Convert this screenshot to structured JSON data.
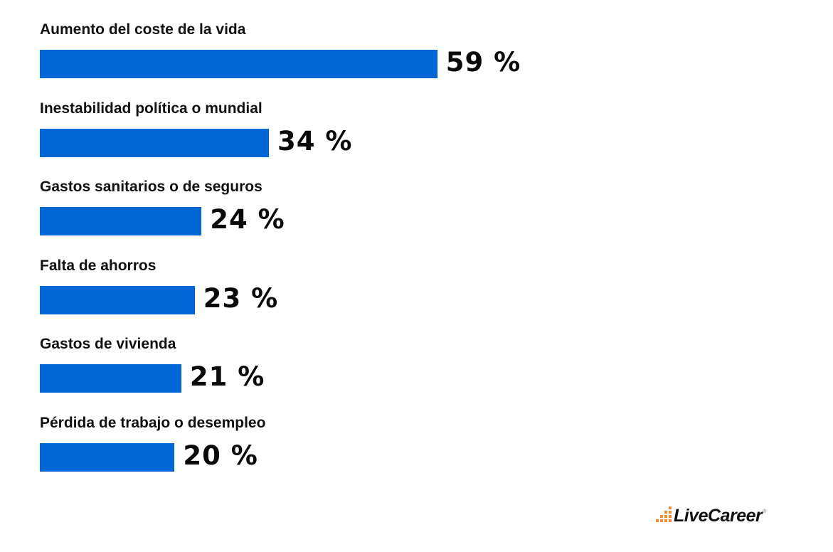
{
  "chart_data": {
    "type": "bar",
    "orientation": "horizontal",
    "title": "",
    "xlabel": "",
    "ylabel": "",
    "categories": [
      "Aumento del coste de la vida",
      "Inestabilidad política o mundial",
      "Gastos sanitarios o de seguros",
      "Falta de ahorros",
      "Gastos de vivienda",
      "Pérdida de trabajo o desempleo"
    ],
    "values": [
      59,
      34,
      24,
      23,
      21,
      20
    ],
    "value_labels": [
      "59 %",
      "34 %",
      "24 %",
      "23 %",
      "21 %",
      "20 %"
    ],
    "unit": "%",
    "xlim": [
      0,
      100
    ],
    "grid": false,
    "legend": "none",
    "bar_color": "#0068d6"
  },
  "branding": {
    "logo_text": "LiveCareer",
    "logo_mark": "®",
    "accent_color": "#f38b2a"
  }
}
